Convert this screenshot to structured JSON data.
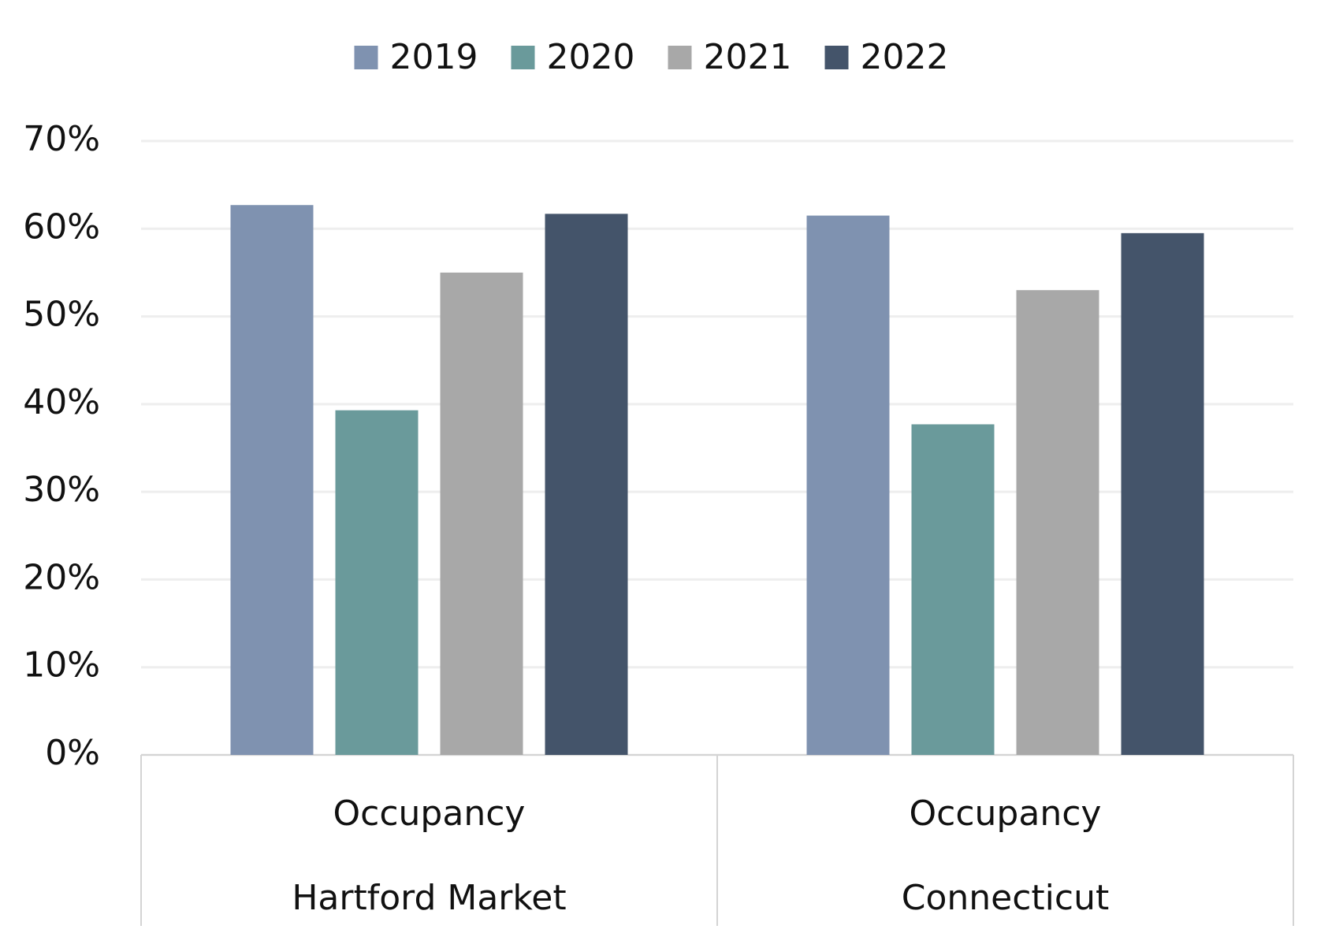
{
  "chart_data": {
    "type": "bar",
    "categories": [
      "Occupancy",
      "Occupancy"
    ],
    "category_groups": [
      "Hartford Market",
      "Connecticut"
    ],
    "series": [
      {
        "name": "2019",
        "color": "#7f92b0",
        "values": [
          62.7,
          61.5
        ]
      },
      {
        "name": "2020",
        "color": "#6a9a9b",
        "values": [
          39.3,
          37.7
        ]
      },
      {
        "name": "2021",
        "color": "#a8a8a8",
        "values": [
          55.0,
          53.0
        ]
      },
      {
        "name": "2022",
        "color": "#44546a",
        "values": [
          61.7,
          59.5
        ]
      }
    ],
    "ylim": [
      0,
      70
    ],
    "yticks": [
      {
        "value": 0,
        "label": "0%"
      },
      {
        "value": 10,
        "label": "10%"
      },
      {
        "value": 20,
        "label": "20%"
      },
      {
        "value": 30,
        "label": "30%"
      },
      {
        "value": 40,
        "label": "40%"
      },
      {
        "value": 50,
        "label": "50%"
      },
      {
        "value": 60,
        "label": "60%"
      },
      {
        "value": 70,
        "label": "70%"
      }
    ],
    "grid": true,
    "legend": "top"
  }
}
